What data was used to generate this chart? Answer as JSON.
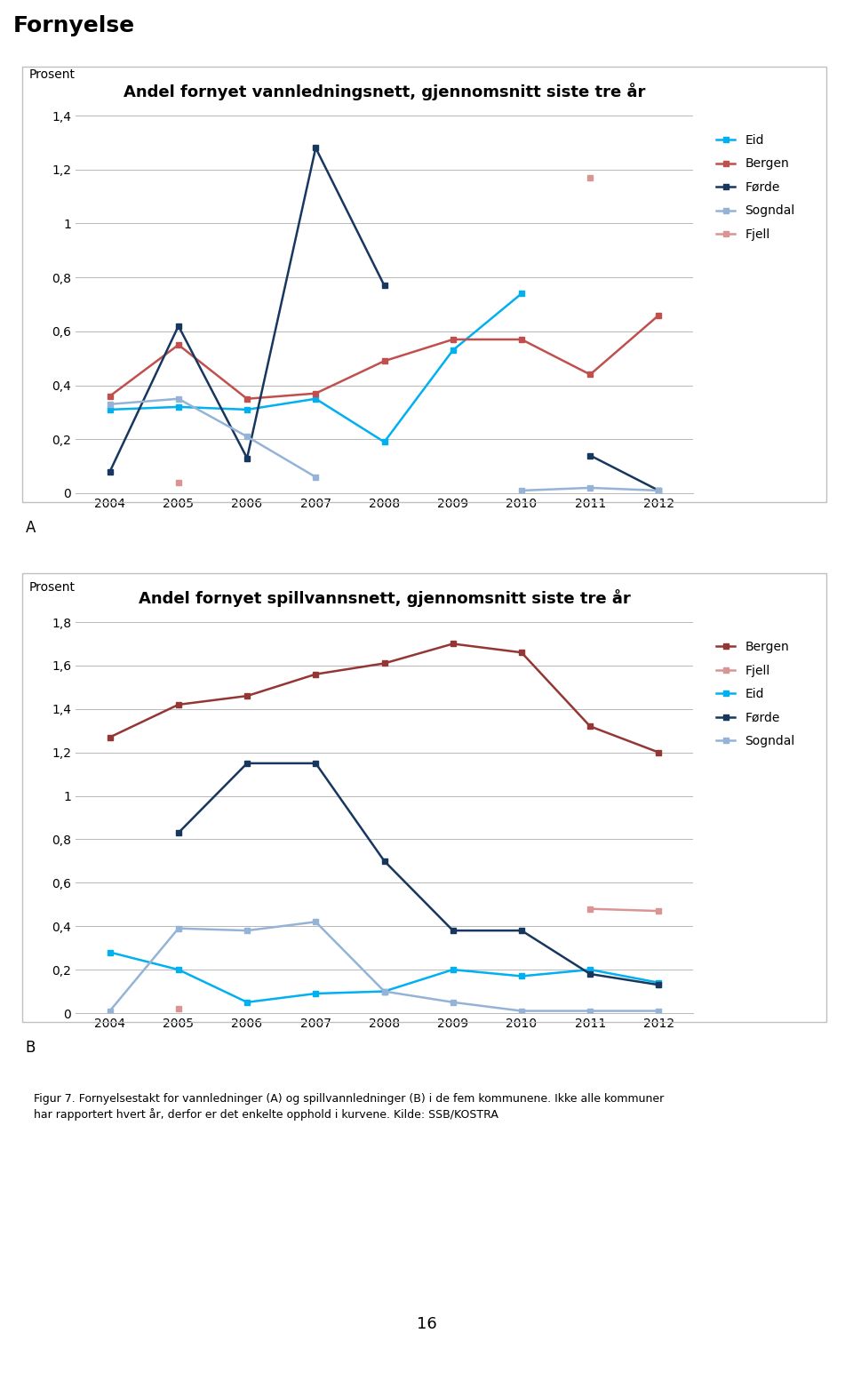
{
  "title_page": "Fornyelse",
  "chart_a_title": "Andel fornyet vannledningsnett, gjennomsnitt siste tre år",
  "chart_b_title": "Andel fornyet spillvannsnett, gjennomsnitt siste tre år",
  "ylabel": "Prosent",
  "label_a": "A",
  "label_b": "B",
  "years": [
    2004,
    2005,
    2006,
    2007,
    2008,
    2009,
    2010,
    2011,
    2012
  ],
  "chart_a": {
    "Eid": [
      0.31,
      0.32,
      0.31,
      0.35,
      0.19,
      0.53,
      0.74,
      null,
      null
    ],
    "Bergen": [
      0.36,
      0.55,
      0.35,
      0.37,
      0.49,
      0.57,
      0.57,
      0.44,
      0.66
    ],
    "Førde": [
      0.08,
      0.62,
      0.13,
      1.28,
      0.77,
      null,
      null,
      0.14,
      0.01
    ],
    "Sogndal": [
      0.33,
      0.35,
      0.21,
      0.06,
      null,
      null,
      0.01,
      0.02,
      0.01
    ],
    "Fjell": [
      null,
      0.04,
      null,
      null,
      null,
      null,
      null,
      1.17,
      null
    ]
  },
  "chart_b": {
    "Bergen": [
      1.27,
      1.42,
      1.46,
      1.56,
      1.61,
      1.7,
      1.66,
      1.32,
      1.2
    ],
    "Fjell": [
      null,
      0.02,
      null,
      null,
      null,
      null,
      null,
      0.48,
      0.47
    ],
    "Eid": [
      0.28,
      0.2,
      0.05,
      0.09,
      0.1,
      0.2,
      0.17,
      0.2,
      0.14
    ],
    "Førde": [
      null,
      0.83,
      1.15,
      1.15,
      0.7,
      0.38,
      0.38,
      0.18,
      0.13
    ],
    "Sogndal": [
      0.01,
      0.39,
      0.38,
      0.42,
      0.1,
      0.05,
      0.01,
      0.01,
      0.01
    ]
  },
  "colors_a": {
    "Eid": "#00b0f0",
    "Bergen": "#c0504d",
    "Førde": "#17375e",
    "Sogndal": "#95b3d7",
    "Fjell": "#d99594"
  },
  "colors_b": {
    "Bergen": "#943634",
    "Fjell": "#d99594",
    "Eid": "#00b0f0",
    "Førde": "#17375e",
    "Sogndal": "#95b3d7"
  },
  "legend_order_a": [
    "Eid",
    "Bergen",
    "Førde",
    "Sogndal",
    "Fjell"
  ],
  "legend_order_b": [
    "Bergen",
    "Fjell",
    "Eid",
    "Førde",
    "Sogndal"
  ],
  "ylim_a": [
    0,
    1.4
  ],
  "ylim_b": [
    0,
    1.8
  ],
  "yticks_a": [
    0,
    0.2,
    0.4,
    0.6,
    0.8,
    1.0,
    1.2,
    1.4
  ],
  "yticks_b": [
    0,
    0.2,
    0.4,
    0.6,
    0.8,
    1.0,
    1.2,
    1.4,
    1.6,
    1.8
  ],
  "footer_text": "Figur 7. Fornyelsestakt for vannledninger (A) og spillvannledninger (B) i de fem kommunene. Ikke alle kommuner\nhar rapportert hvert år, derfor er det enkelte opphold i kurvene. Kilde: SSB/KOSTRA",
  "page_number": "16",
  "fig_width": 9.6,
  "fig_height": 15.72
}
